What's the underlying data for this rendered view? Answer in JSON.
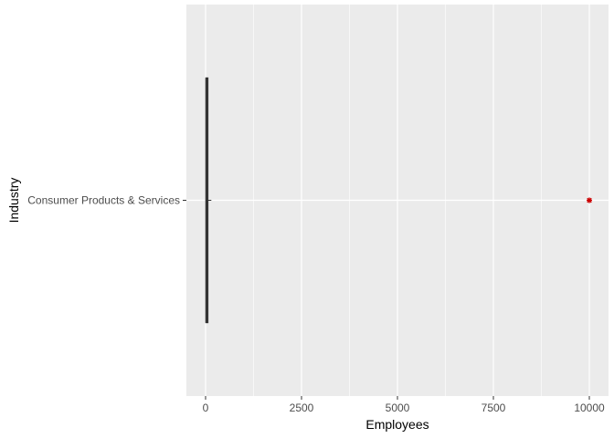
{
  "chart_data": {
    "type": "boxplot",
    "orientation": "horizontal",
    "title": "",
    "xlabel": "Employees",
    "ylabel": "Industry",
    "xlim": [
      -500,
      10500
    ],
    "x_ticks": [
      0,
      2500,
      5000,
      7500,
      10000
    ],
    "x_tick_labels": [
      "0",
      "2500",
      "5000",
      "7500",
      "10000"
    ],
    "categories": [
      "Consumer Products & Services"
    ],
    "boxes": [
      {
        "category": "Consumer Products & Services",
        "min": 1,
        "q1": 10,
        "median": 25,
        "q3": 60,
        "max": 150
      }
    ],
    "outliers": [
      {
        "category": "Consumer Products & Services",
        "x": 10000
      }
    ],
    "grid": true,
    "legend": "none",
    "colors": {
      "panel_background": "#ebebeb",
      "grid": "#ffffff",
      "box": "#333333",
      "outlier": "#cc0000"
    }
  }
}
